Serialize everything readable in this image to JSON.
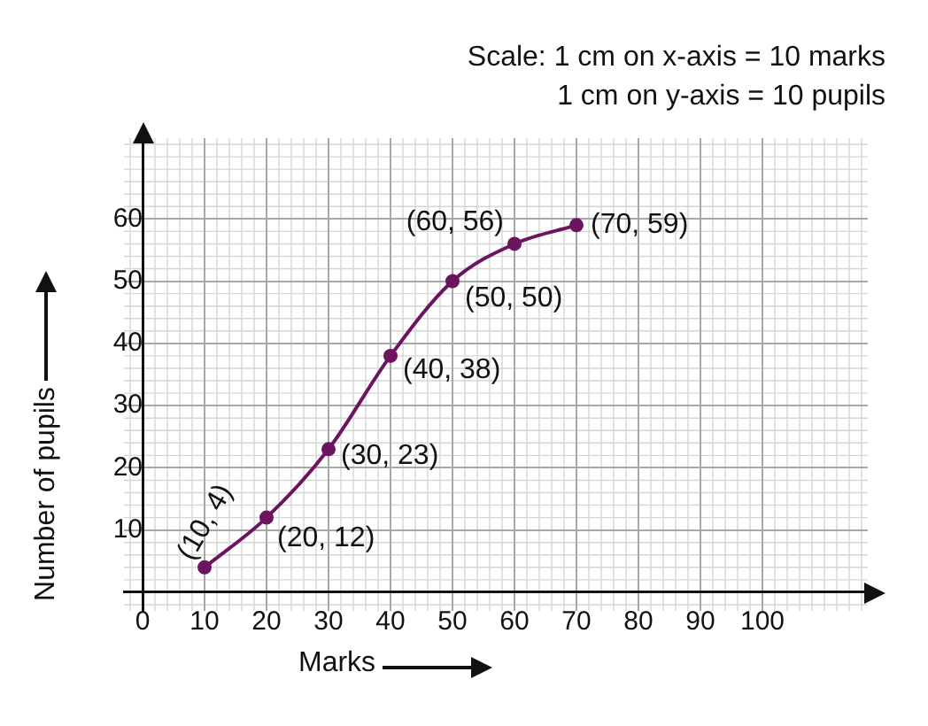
{
  "chart_data": {
    "type": "line",
    "xlabel": "Marks",
    "ylabel": "Number of pupils",
    "annotations": [
      "Scale: 1 cm on x-axis = 10 marks",
      "1 cm on y-axis = 10 pupils"
    ],
    "x": [
      10,
      20,
      30,
      40,
      50,
      60,
      70
    ],
    "series": [
      {
        "color": "#6d1460",
        "values": [
          4,
          12,
          23,
          38,
          50,
          56,
          59
        ],
        "value_labels": [
          "(10, 4)",
          "(20, 12)",
          "(30, 23)",
          "(40, 38)",
          "(50, 50)",
          "(60, 56)",
          "(70, 59)"
        ]
      }
    ],
    "xlim": [
      -3,
      117
    ],
    "ylim": [
      -3,
      73
    ],
    "xticks": [
      0,
      10,
      20,
      30,
      40,
      50,
      60,
      70,
      80,
      90,
      100
    ],
    "yticks": [
      10,
      20,
      30,
      40,
      50,
      60
    ],
    "grid": true,
    "marker": "circle",
    "line_style": "solid",
    "legend": false
  }
}
